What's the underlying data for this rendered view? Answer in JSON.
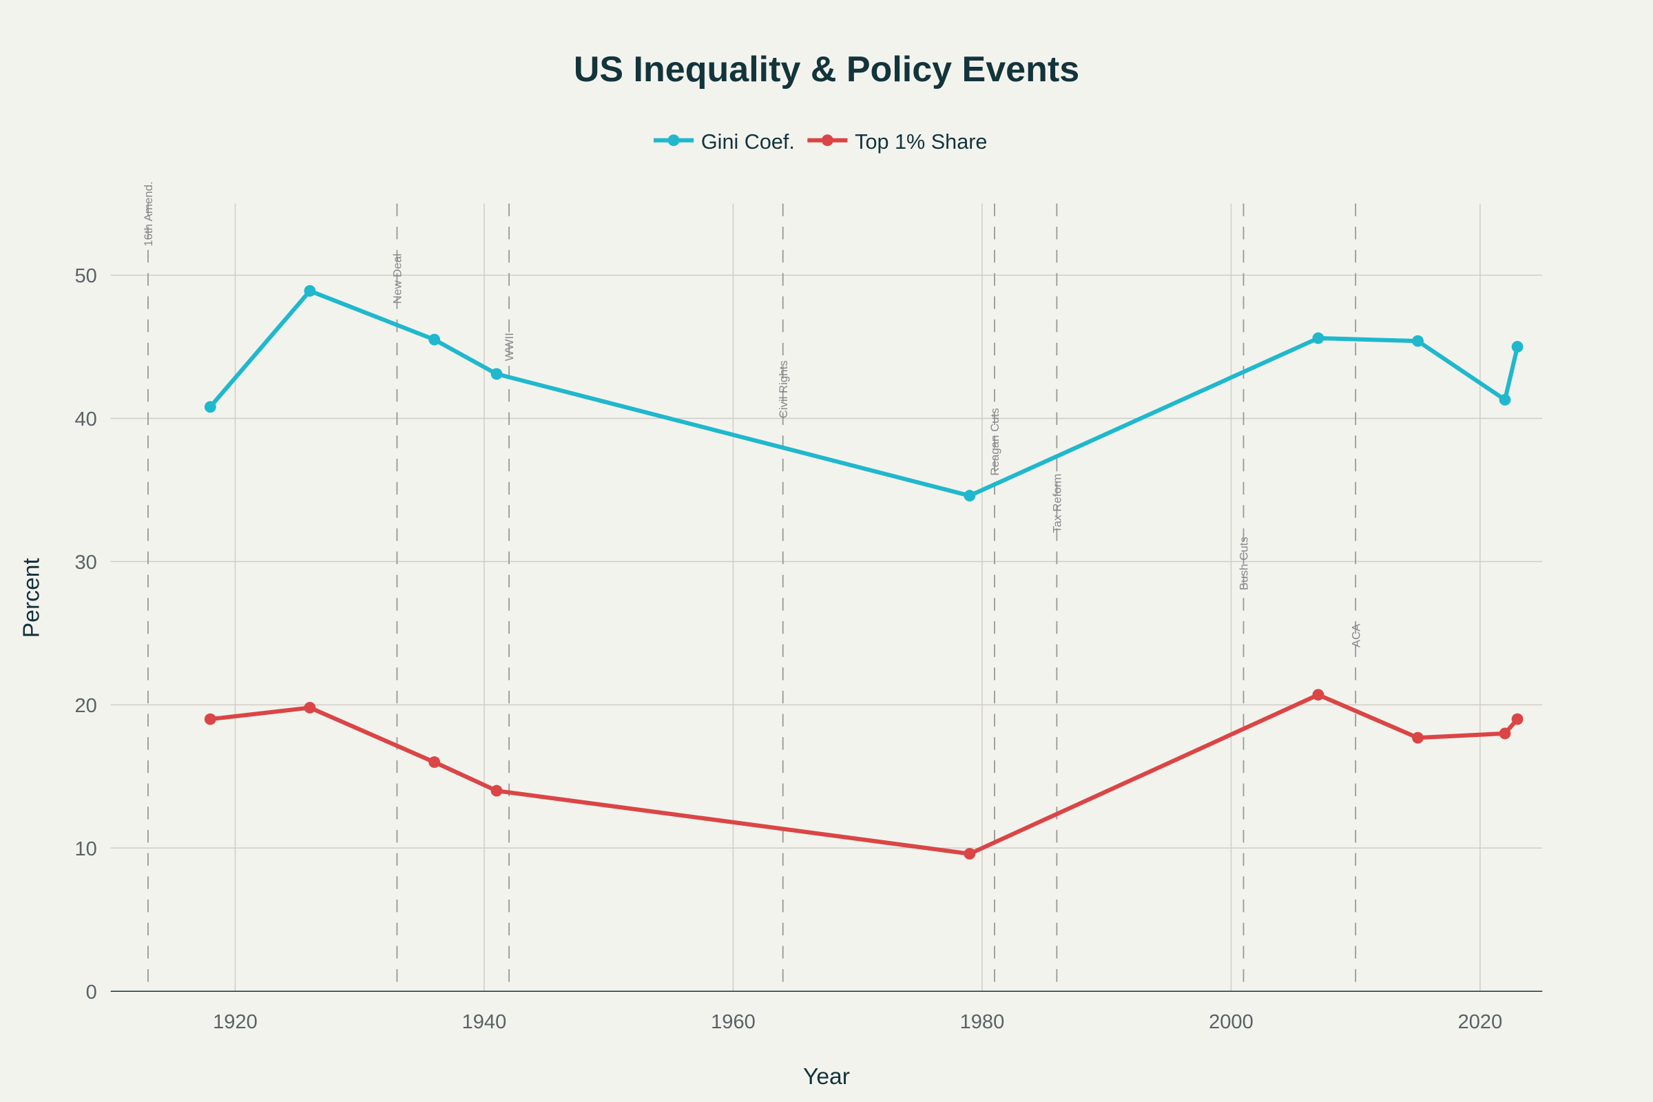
{
  "chart_data": {
    "type": "line",
    "title": "US Inequality & Policy Events",
    "xlabel": "Year",
    "ylabel": "Percent",
    "xlim": [
      1910,
      2025
    ],
    "ylim": [
      0,
      55
    ],
    "x_ticks": [
      1920,
      1940,
      1960,
      1980,
      2000,
      2020
    ],
    "y_ticks": [
      0,
      10,
      20,
      30,
      40,
      50
    ],
    "grid": true,
    "legend_position": "top-center",
    "x": [
      1918,
      1926,
      1936,
      1941,
      1979,
      2007,
      2015,
      2022,
      2023
    ],
    "series": [
      {
        "name": "Gini Coef.",
        "color": "#1fb8cd",
        "values": [
          40.8,
          48.9,
          45.5,
          43.1,
          34.6,
          45.6,
          45.4,
          41.3,
          45.0
        ]
      },
      {
        "name": "Top 1% Share",
        "color": "#db4545",
        "values": [
          19.0,
          19.8,
          16.0,
          14.0,
          9.6,
          20.7,
          17.7,
          18.0,
          19.0
        ]
      }
    ],
    "annotations": [
      {
        "year": 1913,
        "label": "16th Amend.",
        "y": 52
      },
      {
        "year": 1933,
        "label": "New Deal",
        "y": 48
      },
      {
        "year": 1942,
        "label": "WWII",
        "y": 44
      },
      {
        "year": 1964,
        "label": "Civil Rights",
        "y": 40
      },
      {
        "year": 1981,
        "label": "Reagan Cuts",
        "y": 36
      },
      {
        "year": 1986,
        "label": "Tax Reform",
        "y": 32
      },
      {
        "year": 2001,
        "label": "Bush Cuts",
        "y": 28
      },
      {
        "year": 2010,
        "label": "ACA",
        "y": 24
      }
    ],
    "colors": {
      "background": "#f3f3ee",
      "title": "#13343b",
      "grid": "#d0cdc8",
      "annotation": "#999999"
    }
  }
}
